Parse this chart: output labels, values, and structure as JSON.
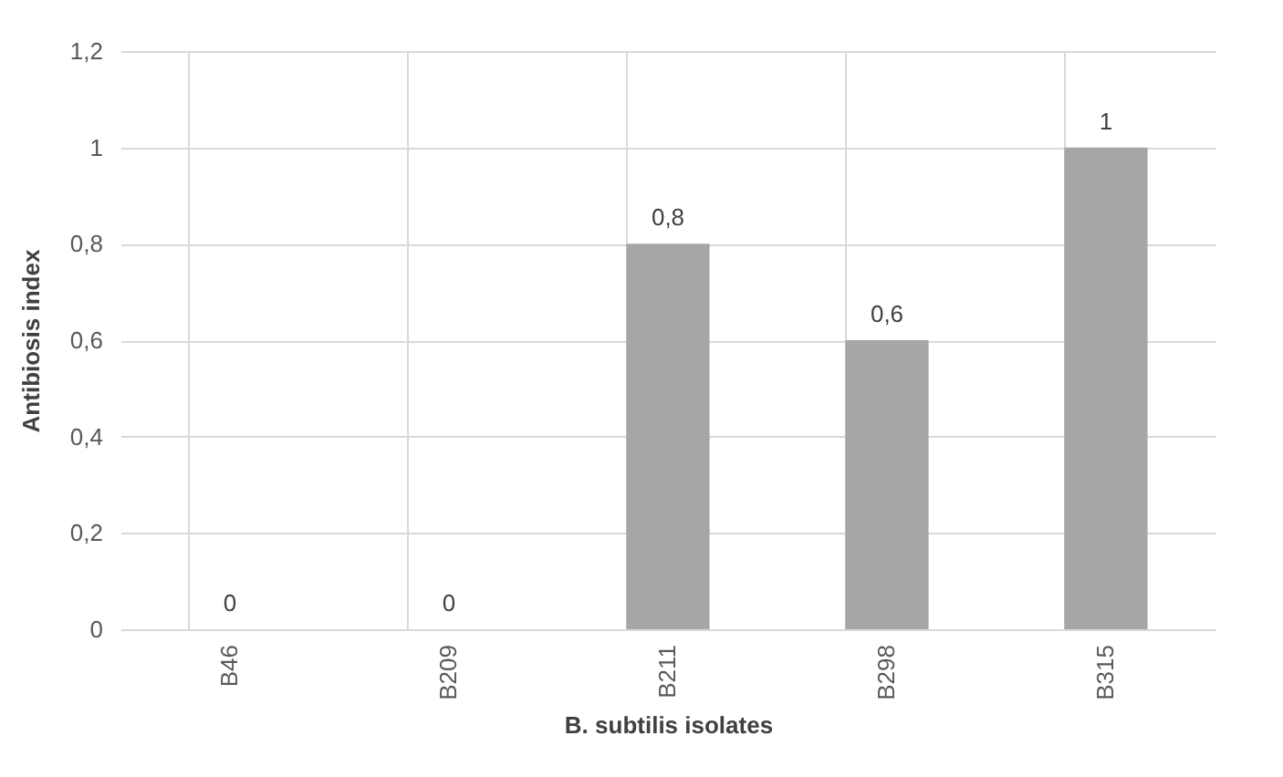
{
  "chart_data": {
    "type": "bar",
    "xlabel": "B. subtilis isolates",
    "ylabel": "Antibiosis index",
    "categories": [
      "B46",
      "B209",
      "B211",
      "B298",
      "B315"
    ],
    "values": [
      0,
      0,
      0.8,
      0.6,
      1
    ],
    "value_labels": [
      "0",
      "0",
      "0,8",
      "0,6",
      "1"
    ],
    "color": "#a6a6a6",
    "ylim": [
      0,
      1.2
    ],
    "yticks": [
      0,
      {
        "value": 0.2,
        "label": "0,2"
      },
      {
        "value": 0.4,
        "label": "0,4"
      },
      {
        "value": 0.6,
        "label": "0,6"
      },
      {
        "value": 0.8,
        "label": "0,8"
      },
      1,
      {
        "value": 1.2,
        "label": "1,2"
      }
    ],
    "grid": true
  }
}
